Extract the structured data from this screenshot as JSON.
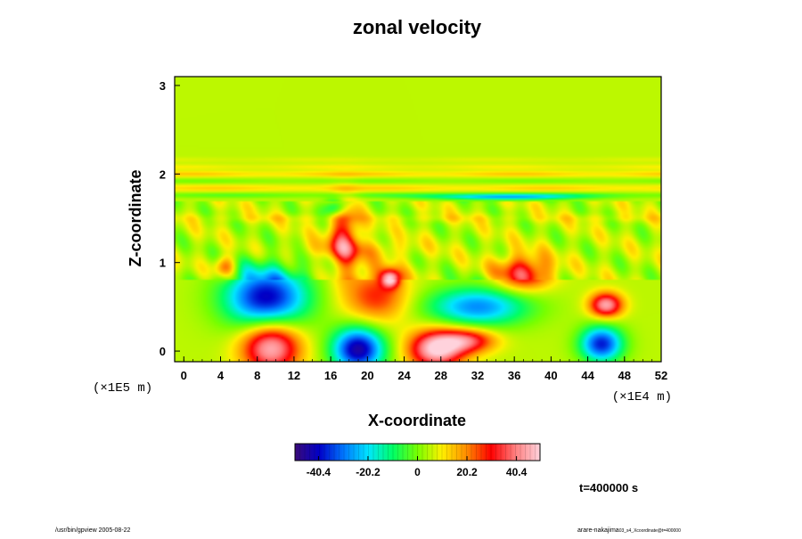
{
  "chart_data": {
    "type": "heatmap",
    "title": "zonal velocity",
    "xlabel": "X-coordinate",
    "ylabel": "Z-coordinate",
    "x_scale_note": "(×1E4 m)",
    "y_scale_note": "(×1E5 m)",
    "xlim": [
      -1,
      52
    ],
    "ylim": [
      -0.12,
      3.1
    ],
    "x_ticks": [
      "0",
      "4",
      "8",
      "12",
      "16",
      "20",
      "24",
      "28",
      "32",
      "36",
      "40",
      "44",
      "48",
      "52"
    ],
    "y_ticks": [
      "0",
      "1",
      "2",
      "3"
    ],
    "colorbar": {
      "range": [
        -50,
        50
      ],
      "ticks": [
        "-40.4",
        "-20.2",
        "0",
        "20.2",
        "40.4"
      ],
      "colors": [
        "#3a0a78",
        "#0000c8",
        "#0078ff",
        "#00e6ff",
        "#00ff64",
        "#78ff00",
        "#fff000",
        "#ff8c00",
        "#ff0000",
        "#ff8080",
        "#ffd2dc"
      ]
    },
    "background_value": 5,
    "features": [
      {
        "x": 9.5,
        "z": 0.05,
        "rx": 3.2,
        "rz": 0.3,
        "value": 48
      },
      {
        "x": 19,
        "z": 0.02,
        "rx": 2.8,
        "rz": 0.25,
        "value": -45
      },
      {
        "x": 27.5,
        "z": 0.02,
        "rx": 3.0,
        "rz": 0.22,
        "value": 50
      },
      {
        "x": 31,
        "z": 0.12,
        "rx": 3.0,
        "rz": 0.14,
        "value": 35
      },
      {
        "x": 45.5,
        "z": 0.08,
        "rx": 2.3,
        "rz": 0.2,
        "value": -38
      },
      {
        "x": 9.0,
        "z": 0.6,
        "rx": 4.5,
        "rz": 0.35,
        "value": -42
      },
      {
        "x": 21,
        "z": 0.62,
        "rx": 3.5,
        "rz": 0.3,
        "value": 28
      },
      {
        "x": 22.5,
        "z": 0.82,
        "rx": 1.0,
        "rz": 0.1,
        "value": 42
      },
      {
        "x": 32,
        "z": 0.5,
        "rx": 5.5,
        "rz": 0.22,
        "value": -28
      },
      {
        "x": 37,
        "z": 0.88,
        "rx": 3.0,
        "rz": 0.2,
        "value": 35
      },
      {
        "x": 46,
        "z": 0.52,
        "rx": 1.8,
        "rz": 0.14,
        "value": 45
      },
      {
        "x": 4.5,
        "z": 0.95,
        "rx": 1.2,
        "rz": 0.12,
        "value": 28
      },
      {
        "x": 17.5,
        "z": 1.28,
        "rx": 1.6,
        "rz": 0.4,
        "value": 32
      },
      {
        "x": 16.5,
        "z": 1.62,
        "rx": 1.2,
        "rz": 0.1,
        "value": -22
      },
      {
        "x": 35,
        "z": 1.74,
        "rx": 8.0,
        "rz": 0.035,
        "value": -22
      },
      {
        "x": 18.0,
        "z": 1.15,
        "rx": 6.5,
        "rz": 0.12,
        "value": 15
      }
    ],
    "bands": [
      {
        "z": 2.0,
        "value": 22,
        "width": 0.035
      },
      {
        "z": 1.92,
        "value": -5,
        "width": 0.03
      },
      {
        "z": 1.84,
        "value": 20,
        "width": 0.04
      },
      {
        "z": 1.76,
        "value": -10,
        "width": 0.03
      },
      {
        "z": 2.08,
        "value": 14,
        "width": 0.03
      },
      {
        "z": 2.16,
        "value": 10,
        "width": 0.03
      },
      {
        "z": 1.5,
        "value": 12,
        "width": 0.05
      }
    ]
  },
  "footer": {
    "time_label": "t=400000 s",
    "left_caption": "/usr/bin/gpview 2005-08-22",
    "right_caption": "arare-nakajima",
    "right_caption_small": "03_s4_Xcoordinate@t=400000"
  }
}
